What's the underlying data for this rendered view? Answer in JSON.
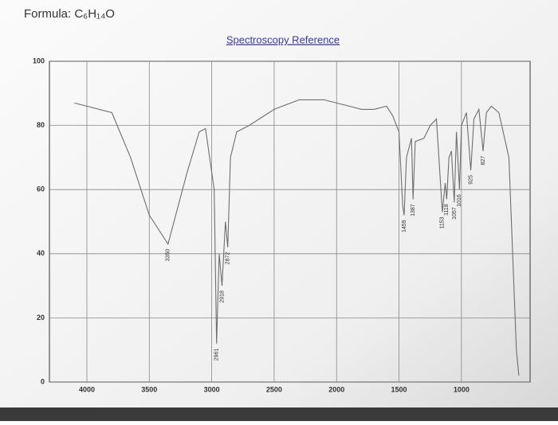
{
  "chart_data": {
    "type": "line",
    "title": "Formula: C₆H₁₄O",
    "subtitle": "Spectroscopy Reference",
    "x": [
      4100,
      3800,
      3650,
      3500,
      3350,
      3200,
      3100,
      3050,
      2980,
      2961,
      2940,
      2918,
      2890,
      2872,
      2850,
      2800,
      2700,
      2500,
      2300,
      2100,
      2000,
      1900,
      1800,
      1700,
      1600,
      1550,
      1500,
      1470,
      1459,
      1440,
      1400,
      1387,
      1370,
      1300,
      1250,
      1200,
      1153,
      1130,
      1118,
      1100,
      1080,
      1057,
      1040,
      1016,
      1000,
      960,
      925,
      900,
      860,
      827,
      800,
      760,
      700,
      620,
      560,
      540
    ],
    "series": [
      {
        "color": "#6e6e6e",
        "values": [
          87,
          84,
          70,
          52,
          43,
          65,
          78,
          79,
          60,
          12,
          40,
          30,
          50,
          42,
          70,
          78,
          80,
          85,
          88,
          88,
          87,
          86,
          85,
          85,
          86,
          83,
          78,
          55,
          52,
          70,
          76,
          57,
          75,
          76,
          80,
          82,
          53,
          62,
          57,
          70,
          72,
          56,
          78,
          60,
          80,
          84,
          66,
          82,
          85,
          72,
          84,
          86,
          84,
          70,
          10,
          2
        ]
      }
    ],
    "peak_labels": [
      3350,
      2961,
      2918,
      2872,
      1459,
      1387,
      1153,
      1118,
      1057,
      1016,
      925,
      827
    ],
    "xlim": [
      4300,
      450
    ],
    "xticks": [
      4000,
      3500,
      3000,
      2500,
      2000,
      1500,
      1000
    ],
    "ylim": [
      0,
      100
    ],
    "yticks": [
      0,
      20,
      40,
      60,
      80,
      100
    ],
    "grid": true
  }
}
